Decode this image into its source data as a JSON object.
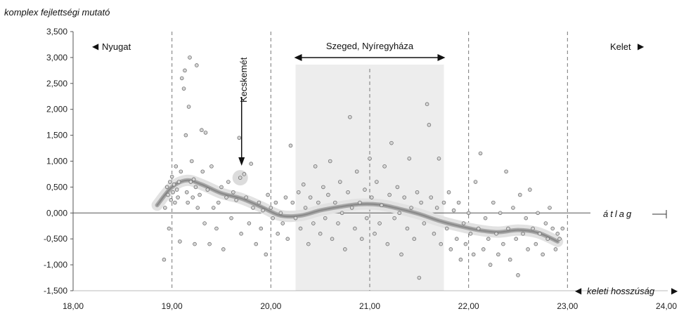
{
  "chart_data": {
    "type": "scatter",
    "title": "komplex fejlettségi mutató",
    "xlabel": "keleti hosszúság",
    "ylabel": "komplex fejlettségi mutató",
    "xlim": [
      18.0,
      24.0
    ],
    "ylim": [
      -1.5,
      3.5
    ],
    "x_ticks": [
      "18,00",
      "19,00",
      "20,00",
      "21,00",
      "22,00",
      "23,00",
      "24,00"
    ],
    "y_ticks": [
      "3,500",
      "3,000",
      "2,500",
      "2,000",
      "1,500",
      "1,000",
      "0,500",
      "0,000",
      "-0,500",
      "-1,000",
      "-1,500"
    ],
    "baseline_label": "átlag",
    "west_label": "Nyugat",
    "east_label": "Kelet",
    "region_label": "Szeged, Nyíregyháza",
    "region_range": [
      20.25,
      21.75
    ],
    "city_label": "Kecskemét",
    "city_point": {
      "x": 19.69,
      "y": 0.68
    },
    "vertical_dashed_x": [
      19.0,
      20.0,
      21.0,
      22.0,
      23.0
    ],
    "trend": {
      "x": [
        18.85,
        19.0,
        19.15,
        19.3,
        19.5,
        19.7,
        19.9,
        20.1,
        20.3,
        20.5,
        20.7,
        20.9,
        21.1,
        21.3,
        21.5,
        21.7,
        21.9,
        22.1,
        22.3,
        22.5,
        22.7,
        22.9
      ],
      "y": [
        0.15,
        0.5,
        0.63,
        0.55,
        0.38,
        0.28,
        0.12,
        -0.05,
        -0.05,
        0.05,
        0.12,
        0.17,
        0.16,
        0.08,
        -0.02,
        -0.15,
        -0.25,
        -0.33,
        -0.37,
        -0.33,
        -0.38,
        -0.55
      ]
    },
    "series": [
      {
        "points": [
          [
            18.92,
            -0.9
          ],
          [
            18.93,
            0.1
          ],
          [
            18.95,
            0.5
          ],
          [
            18.96,
            0.35
          ],
          [
            18.97,
            -0.3
          ],
          [
            18.98,
            0.6
          ],
          [
            18.99,
            0.25
          ],
          [
            19.0,
            0.7
          ],
          [
            19.01,
            0.4
          ],
          [
            19.02,
            0.55
          ],
          [
            19.03,
            0.2
          ],
          [
            19.04,
            0.9
          ],
          [
            19.05,
            0.45
          ],
          [
            19.06,
            0.3
          ],
          [
            19.07,
            0.6
          ],
          [
            19.08,
            -0.55
          ],
          [
            19.09,
            0.8
          ],
          [
            19.1,
            2.6
          ],
          [
            19.12,
            2.4
          ],
          [
            19.13,
            2.75
          ],
          [
            19.14,
            1.5
          ],
          [
            19.15,
            0.4
          ],
          [
            19.16,
            0.2
          ],
          [
            19.17,
            2.05
          ],
          [
            19.18,
            3.0
          ],
          [
            19.19,
            0.6
          ],
          [
            19.2,
            1.0
          ],
          [
            19.21,
            0.3
          ],
          [
            19.22,
            0.65
          ],
          [
            19.23,
            -0.6
          ],
          [
            19.24,
            0.5
          ],
          [
            19.25,
            2.85
          ],
          [
            19.26,
            0.1
          ],
          [
            19.28,
            0.35
          ],
          [
            19.3,
            1.6
          ],
          [
            19.31,
            0.8
          ],
          [
            19.33,
            -0.2
          ],
          [
            19.34,
            1.55
          ],
          [
            19.36,
            0.45
          ],
          [
            19.38,
            -0.6
          ],
          [
            19.4,
            0.9
          ],
          [
            19.42,
            0.1
          ],
          [
            19.45,
            -0.3
          ],
          [
            19.47,
            0.2
          ],
          [
            19.5,
            0.5
          ],
          [
            19.52,
            -0.7
          ],
          [
            19.55,
            0.3
          ],
          [
            19.57,
            0.6
          ],
          [
            19.6,
            -0.1
          ],
          [
            19.62,
            0.4
          ],
          [
            19.65,
            0.25
          ],
          [
            19.68,
            1.45
          ],
          [
            19.69,
            0.68
          ],
          [
            19.7,
            -0.4
          ],
          [
            19.73,
            0.75
          ],
          [
            19.75,
            0.3
          ],
          [
            19.78,
            -0.2
          ],
          [
            19.8,
            0.95
          ],
          [
            19.82,
            0.1
          ],
          [
            19.85,
            -0.6
          ],
          [
            19.88,
            0.2
          ],
          [
            19.9,
            -0.3
          ],
          [
            19.92,
            0.05
          ],
          [
            19.95,
            -0.8
          ],
          [
            19.97,
            0.35
          ],
          [
            20.0,
            0.1
          ],
          [
            20.02,
            -0.1
          ],
          [
            20.05,
            0.2
          ],
          [
            20.07,
            -0.4
          ],
          [
            20.1,
            0.0
          ],
          [
            20.12,
            -0.2
          ],
          [
            20.15,
            0.3
          ],
          [
            20.17,
            -0.5
          ],
          [
            20.2,
            1.3
          ],
          [
            20.22,
            0.2
          ],
          [
            20.25,
            -0.1
          ],
          [
            20.28,
            0.4
          ],
          [
            20.3,
            -0.3
          ],
          [
            20.33,
            0.55
          ],
          [
            20.35,
            0.1
          ],
          [
            20.38,
            -0.6
          ],
          [
            20.4,
            0.3
          ],
          [
            20.43,
            -0.2
          ],
          [
            20.45,
            0.9
          ],
          [
            20.48,
            0.2
          ],
          [
            20.5,
            -0.4
          ],
          [
            20.53,
            0.5
          ],
          [
            20.55,
            -0.1
          ],
          [
            20.58,
            0.35
          ],
          [
            20.6,
            1.0
          ],
          [
            20.62,
            -0.5
          ],
          [
            20.65,
            0.2
          ],
          [
            20.68,
            -0.2
          ],
          [
            20.7,
            0.6
          ],
          [
            20.72,
            0.0
          ],
          [
            20.75,
            -0.7
          ],
          [
            20.78,
            0.4
          ],
          [
            20.8,
            1.85
          ],
          [
            20.82,
            0.1
          ],
          [
            20.85,
            -0.3
          ],
          [
            20.87,
            0.8
          ],
          [
            20.9,
            0.2
          ],
          [
            20.92,
            -0.5
          ],
          [
            20.95,
            0.45
          ],
          [
            20.97,
            -0.1
          ],
          [
            21.0,
            1.05
          ],
          [
            21.02,
            0.3
          ],
          [
            21.05,
            -0.4
          ],
          [
            21.07,
            0.6
          ],
          [
            21.1,
            -0.2
          ],
          [
            21.12,
            0.15
          ],
          [
            21.15,
            0.9
          ],
          [
            21.18,
            -0.6
          ],
          [
            21.2,
            0.35
          ],
          [
            21.22,
            1.35
          ],
          [
            21.25,
            -0.1
          ],
          [
            21.28,
            0.5
          ],
          [
            21.3,
            0.0
          ],
          [
            21.32,
            -0.8
          ],
          [
            21.35,
            0.3
          ],
          [
            21.38,
            -0.3
          ],
          [
            21.4,
            1.05
          ],
          [
            21.42,
            0.1
          ],
          [
            21.45,
            -0.5
          ],
          [
            21.48,
            0.4
          ],
          [
            21.5,
            -1.25
          ],
          [
            21.52,
            0.2
          ],
          [
            21.55,
            -0.2
          ],
          [
            21.58,
            2.1
          ],
          [
            21.6,
            1.7
          ],
          [
            21.62,
            0.3
          ],
          [
            21.65,
            -0.4
          ],
          [
            21.68,
            0.1
          ],
          [
            21.7,
            1.05
          ],
          [
            21.72,
            -0.6
          ],
          [
            21.75,
            0.2
          ],
          [
            21.78,
            -0.3
          ],
          [
            21.8,
            0.4
          ],
          [
            21.82,
            -0.7
          ],
          [
            21.85,
            0.05
          ],
          [
            21.88,
            -0.5
          ],
          [
            21.9,
            0.2
          ],
          [
            21.92,
            -0.9
          ],
          [
            21.95,
            -0.2
          ],
          [
            21.97,
            -0.6
          ],
          [
            22.0,
            0.0
          ],
          [
            22.02,
            -0.4
          ],
          [
            22.05,
            -0.8
          ],
          [
            22.07,
            0.6
          ],
          [
            22.1,
            -0.3
          ],
          [
            22.12,
            1.15
          ],
          [
            22.15,
            -0.7
          ],
          [
            22.17,
            -0.1
          ],
          [
            22.2,
            -0.5
          ],
          [
            22.22,
            -1.0
          ],
          [
            22.25,
            0.2
          ],
          [
            22.28,
            -0.4
          ],
          [
            22.3,
            -0.8
          ],
          [
            22.32,
            0.0
          ],
          [
            22.35,
            -0.6
          ],
          [
            22.38,
            0.8
          ],
          [
            22.4,
            -0.3
          ],
          [
            22.42,
            -0.9
          ],
          [
            22.45,
            0.1
          ],
          [
            22.48,
            -0.5
          ],
          [
            22.5,
            -1.2
          ],
          [
            22.52,
            0.35
          ],
          [
            22.55,
            -0.4
          ],
          [
            22.58,
            -0.1
          ],
          [
            22.6,
            -0.7
          ],
          [
            22.62,
            0.45
          ],
          [
            22.65,
            -0.3
          ],
          [
            22.68,
            -0.6
          ],
          [
            22.7,
            0.0
          ],
          [
            22.72,
            -0.4
          ],
          [
            22.75,
            -0.8
          ],
          [
            22.78,
            -0.2
          ],
          [
            22.8,
            -0.5
          ],
          [
            22.82,
            0.1
          ],
          [
            22.85,
            -0.3
          ],
          [
            22.88,
            -0.7
          ],
          [
            22.9,
            -0.4
          ],
          [
            22.92,
            -0.5
          ],
          [
            22.95,
            -0.3
          ]
        ]
      }
    ]
  }
}
